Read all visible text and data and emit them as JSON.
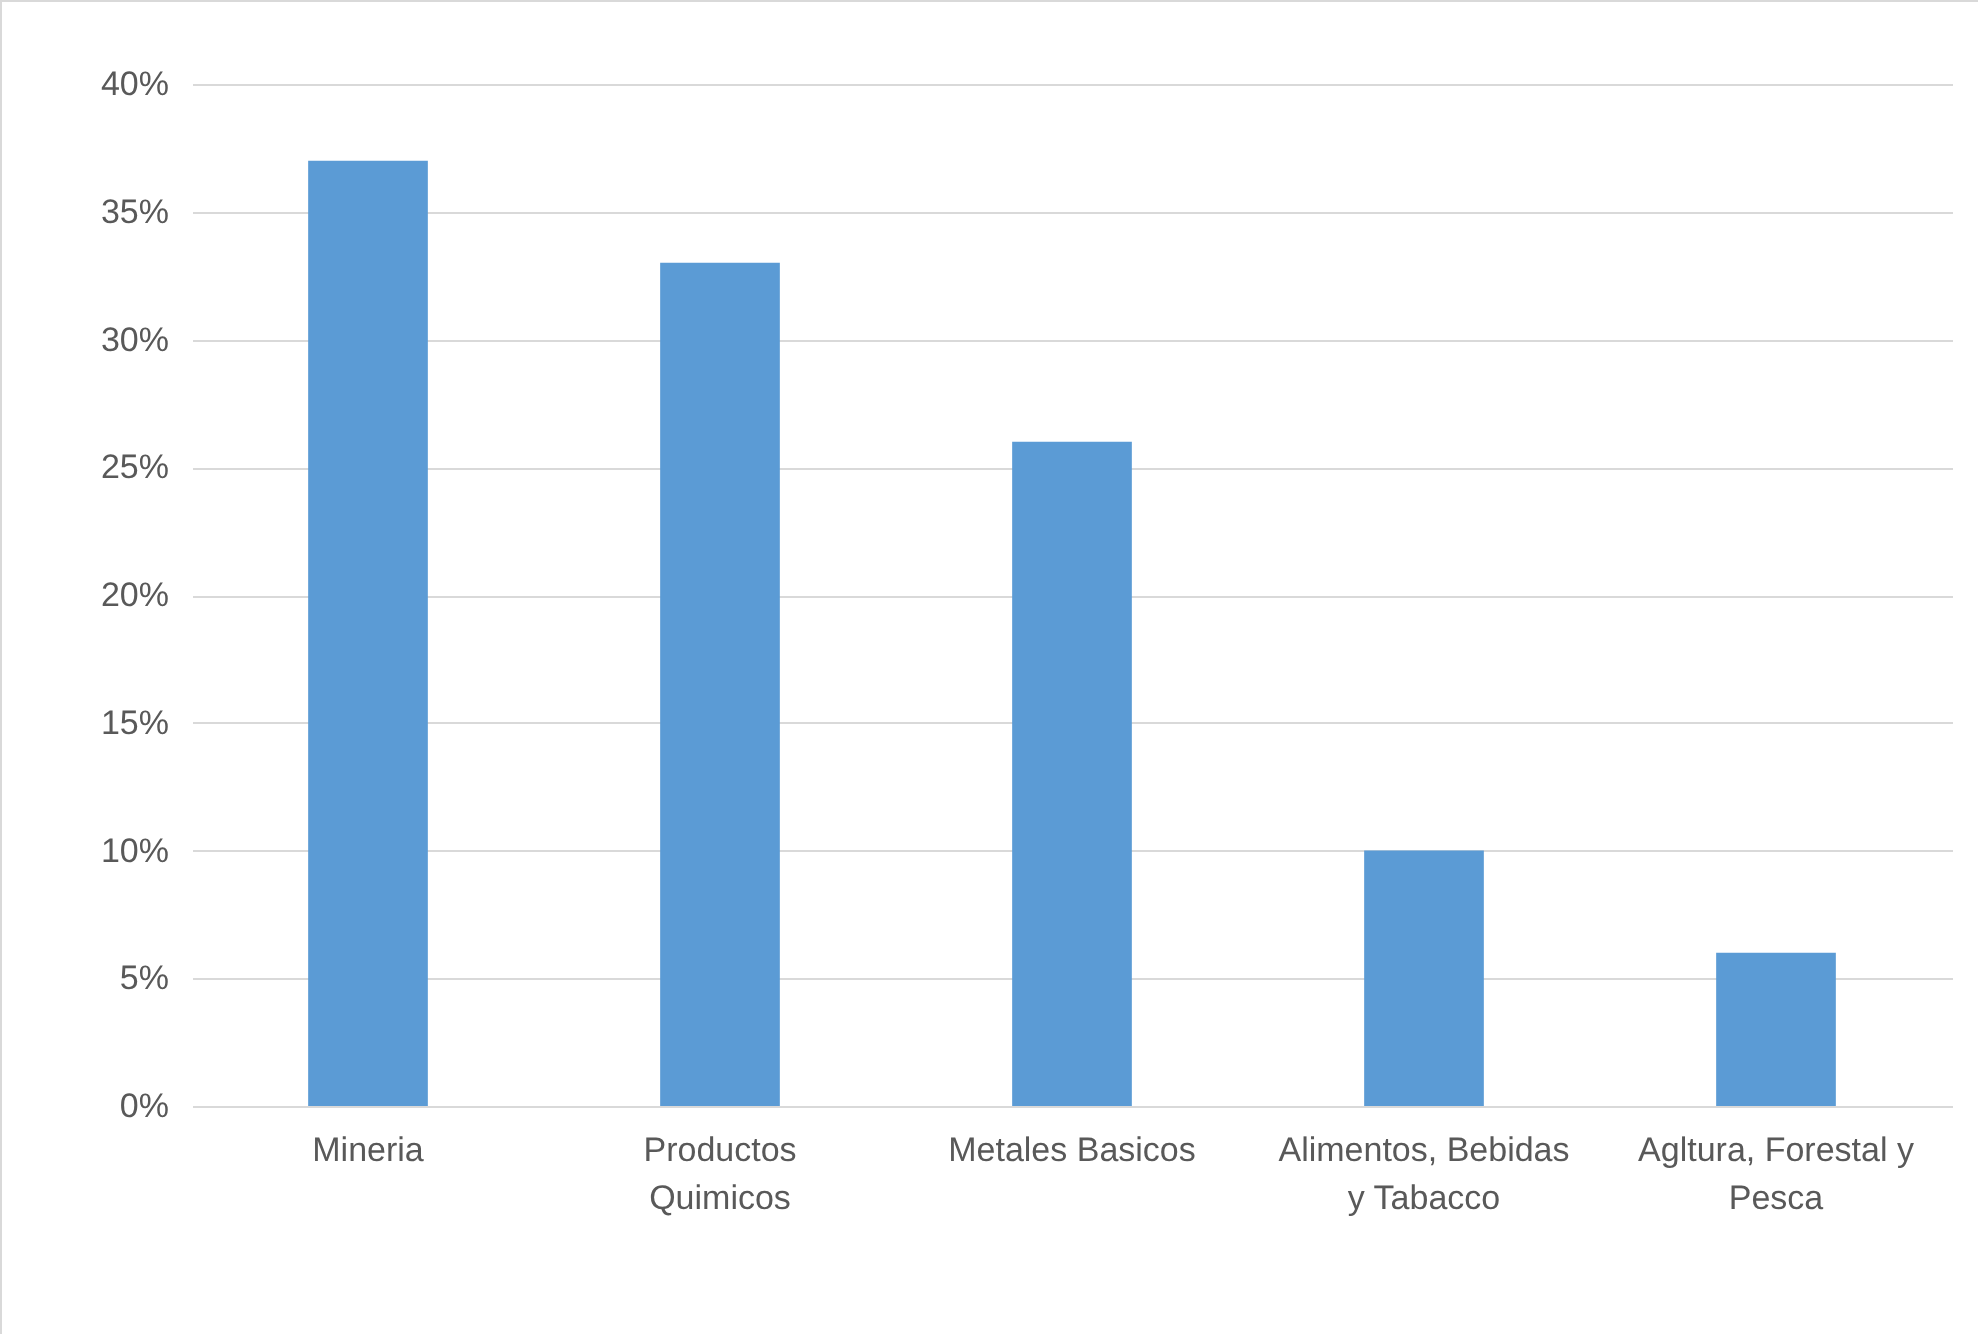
{
  "chart_data": {
    "type": "bar",
    "categories": [
      "Mineria",
      "Productos Quimicos",
      "Metales Basicos",
      "Alimentos, Bebidas y Tabacco",
      "Agltura, Forestal y Pesca"
    ],
    "values": [
      37,
      33,
      26,
      10,
      6
    ],
    "color": "#5b9bd5",
    "ylim": [
      0,
      40
    ],
    "yticks": [
      {
        "value": 0,
        "label": "0%"
      },
      {
        "value": 5,
        "label": "5%"
      },
      {
        "value": 10,
        "label": "10%"
      },
      {
        "value": 15,
        "label": "15%"
      },
      {
        "value": 20,
        "label": "20%"
      },
      {
        "value": 25,
        "label": "25%"
      },
      {
        "value": 30,
        "label": "30%"
      },
      {
        "value": 35,
        "label": "35%"
      },
      {
        "value": 40,
        "label": "40%"
      }
    ],
    "grid": "y"
  }
}
